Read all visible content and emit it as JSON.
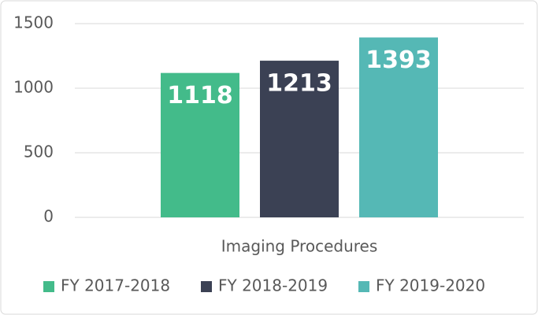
{
  "chart_data": {
    "type": "bar",
    "categories": [
      "Imaging Procedures"
    ],
    "series": [
      {
        "name": "FY 2017-2018",
        "color": "#43bb8a",
        "values": [
          1118
        ]
      },
      {
        "name": "FY 2018-2019",
        "color": "#3b4154",
        "values": [
          1213
        ]
      },
      {
        "name": "FY 2019-2020",
        "color": "#55b8b5",
        "values": [
          1393
        ]
      }
    ],
    "ylim": [
      0,
      1500
    ],
    "yticks": [
      0,
      500,
      1000,
      1500
    ],
    "grid": true,
    "legend": "bottom"
  }
}
